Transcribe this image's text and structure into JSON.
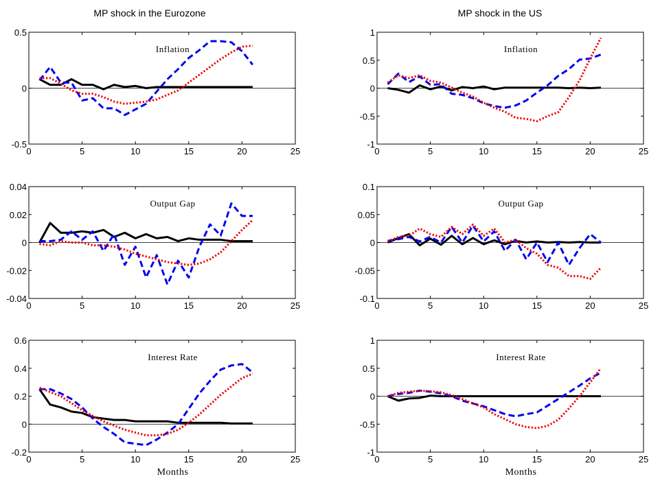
{
  "figure": {
    "col_titles": [
      "MP shock in the Eurozone",
      "MP shock in the US"
    ]
  },
  "chart_data": [
    {
      "type": "line",
      "title": "Inflation",
      "column_title": "MP shock in the Eurozone",
      "xlabel": "",
      "xlim": [
        0,
        25
      ],
      "ylim": [
        -0.5,
        0.5
      ],
      "xticks": [
        0,
        5,
        10,
        15,
        20,
        25
      ],
      "yticks": [
        -0.5,
        0,
        0.5
      ],
      "ytick_labels": [
        "-0.5",
        "0",
        "0.5"
      ],
      "x": [
        1,
        2,
        3,
        4,
        5,
        6,
        7,
        8,
        9,
        10,
        11,
        12,
        13,
        14,
        15,
        16,
        17,
        18,
        19,
        20,
        21
      ],
      "series": [
        {
          "color": "#000000",
          "style": "solid",
          "values": [
            0.08,
            0.03,
            0.03,
            0.08,
            0.03,
            0.03,
            -0.01,
            0.03,
            0.01,
            0.02,
            0.0,
            0.01,
            0.01,
            0.01,
            0.01,
            0.01,
            0.01,
            0.01,
            0.01,
            0.01,
            0.01
          ]
        },
        {
          "color": "#0000ee",
          "style": "dashed",
          "values": [
            0.07,
            0.19,
            0.05,
            0.05,
            -0.11,
            -0.09,
            -0.18,
            -0.18,
            -0.24,
            -0.19,
            -0.14,
            -0.03,
            0.08,
            0.17,
            0.27,
            0.34,
            0.42,
            0.42,
            0.41,
            0.33,
            0.21
          ]
        },
        {
          "color": "#ee0000",
          "style": "dotted",
          "values": [
            0.09,
            0.09,
            0.04,
            -0.02,
            -0.05,
            -0.05,
            -0.08,
            -0.12,
            -0.14,
            -0.13,
            -0.12,
            -0.1,
            -0.06,
            -0.02,
            0.05,
            0.12,
            0.19,
            0.26,
            0.32,
            0.37,
            0.38
          ]
        }
      ]
    },
    {
      "type": "line",
      "title": "Inflation",
      "column_title": "MP shock in the US",
      "xlabel": "",
      "xlim": [
        0,
        25
      ],
      "ylim": [
        -1,
        1
      ],
      "xticks": [
        0,
        5,
        10,
        15,
        20,
        25
      ],
      "yticks": [
        -1,
        -0.5,
        0,
        0.5,
        1
      ],
      "ytick_labels": [
        "-1",
        "-0.5",
        "0",
        "0.5",
        "1"
      ],
      "x": [
        1,
        2,
        3,
        4,
        5,
        6,
        7,
        8,
        9,
        10,
        11,
        12,
        13,
        14,
        15,
        16,
        17,
        18,
        19,
        20,
        21
      ],
      "series": [
        {
          "color": "#000000",
          "style": "solid",
          "values": [
            0.0,
            -0.03,
            -0.08,
            0.05,
            -0.02,
            0.03,
            -0.04,
            0.02,
            0.0,
            0.03,
            -0.02,
            0.01,
            0.01,
            0.01,
            0.01,
            0.01,
            0.01,
            0.0,
            0.01,
            0.0,
            0.01
          ]
        },
        {
          "color": "#0000ee",
          "style": "dashed",
          "values": [
            0.07,
            0.26,
            0.11,
            0.21,
            0.06,
            0.07,
            -0.1,
            -0.12,
            -0.18,
            -0.27,
            -0.32,
            -0.35,
            -0.31,
            -0.22,
            -0.08,
            0.05,
            0.22,
            0.34,
            0.51,
            0.53,
            0.6
          ]
        },
        {
          "color": "#ee0000",
          "style": "dotted",
          "values": [
            0.1,
            0.23,
            0.18,
            0.23,
            0.13,
            0.1,
            0.01,
            -0.08,
            -0.15,
            -0.26,
            -0.35,
            -0.42,
            -0.53,
            -0.55,
            -0.59,
            -0.5,
            -0.43,
            -0.16,
            0.14,
            0.53,
            0.9
          ]
        }
      ]
    },
    {
      "type": "line",
      "title": "Output Gap",
      "column_title": "MP shock in the Eurozone",
      "xlabel": "",
      "xlim": [
        0,
        25
      ],
      "ylim": [
        -0.04,
        0.04
      ],
      "xticks": [
        0,
        5,
        10,
        15,
        20,
        25
      ],
      "yticks": [
        -0.04,
        -0.02,
        0,
        0.02,
        0.04
      ],
      "ytick_labels": [
        "-0.04",
        "-0.02",
        "0",
        "0.02",
        "0.04"
      ],
      "x": [
        1,
        2,
        3,
        4,
        5,
        6,
        7,
        8,
        9,
        10,
        11,
        12,
        13,
        14,
        15,
        16,
        17,
        18,
        19,
        20,
        21
      ],
      "series": [
        {
          "color": "#000000",
          "style": "solid",
          "values": [
            0.0,
            0.014,
            0.007,
            0.007,
            0.008,
            0.007,
            0.009,
            0.004,
            0.007,
            0.003,
            0.006,
            0.003,
            0.004,
            0.001,
            0.003,
            0.002,
            0.002,
            0.002,
            0.001,
            0.001,
            0.001
          ]
        },
        {
          "color": "#0000ee",
          "style": "dashed",
          "values": [
            0.001,
            0.001,
            0.002,
            0.008,
            0.002,
            0.008,
            -0.006,
            0.006,
            -0.016,
            -0.003,
            -0.025,
            -0.009,
            -0.03,
            -0.013,
            -0.025,
            -0.003,
            0.013,
            0.005,
            0.028,
            0.019,
            0.019
          ]
        },
        {
          "color": "#ee0000",
          "style": "dotted",
          "values": [
            -0.001,
            -0.002,
            0.001,
            0.0,
            0.0,
            -0.002,
            -0.002,
            -0.003,
            -0.005,
            -0.008,
            -0.01,
            -0.012,
            -0.014,
            -0.015,
            -0.016,
            -0.015,
            -0.012,
            -0.007,
            0.001,
            0.009,
            0.016
          ]
        }
      ]
    },
    {
      "type": "line",
      "title": "Output Gap",
      "column_title": "MP shock in the US",
      "xlabel": "",
      "xlim": [
        0,
        25
      ],
      "ylim": [
        -0.1,
        0.1
      ],
      "xticks": [
        0,
        5,
        10,
        15,
        20,
        25
      ],
      "yticks": [
        -0.1,
        -0.05,
        0,
        0.05,
        0.1
      ],
      "ytick_labels": [
        "-0.1",
        "-0.05",
        "0",
        "0.05",
        "0.1"
      ],
      "x": [
        1,
        2,
        3,
        4,
        5,
        6,
        7,
        8,
        9,
        10,
        11,
        12,
        13,
        14,
        15,
        16,
        17,
        18,
        19,
        20,
        21
      ],
      "series": [
        {
          "color": "#000000",
          "style": "solid",
          "values": [
            0.0,
            0.008,
            0.015,
            -0.005,
            0.007,
            -0.004,
            0.012,
            -0.003,
            0.008,
            -0.003,
            0.004,
            -0.003,
            0.003,
            0.0,
            0.002,
            0.0,
            0.001,
            0.0,
            0.001,
            0.0,
            0.0
          ]
        },
        {
          "color": "#0000ee",
          "style": "dashed",
          "values": [
            0.003,
            0.006,
            0.01,
            0.002,
            0.01,
            0.0,
            0.028,
            0.0,
            0.03,
            0.002,
            0.02,
            -0.015,
            0.005,
            -0.03,
            0.0,
            -0.035,
            0.0,
            -0.04,
            -0.01,
            0.015,
            0.0
          ]
        },
        {
          "color": "#ee0000",
          "style": "dotted",
          "values": [
            0.002,
            0.01,
            0.012,
            0.025,
            0.015,
            0.01,
            0.028,
            0.015,
            0.032,
            0.012,
            0.025,
            0.0,
            0.005,
            -0.01,
            -0.02,
            -0.04,
            -0.045,
            -0.06,
            -0.06,
            -0.065,
            -0.045
          ]
        }
      ]
    },
    {
      "type": "line",
      "title": "Interest Rate",
      "column_title": "MP shock in the Eurozone",
      "xlabel": "Months",
      "xlim": [
        0,
        25
      ],
      "ylim": [
        -0.2,
        0.6
      ],
      "xticks": [
        0,
        5,
        10,
        15,
        20,
        25
      ],
      "yticks": [
        -0.2,
        0,
        0.2,
        0.4,
        0.6
      ],
      "ytick_labels": [
        "-0.2",
        "0",
        "0.2",
        "0.4",
        "0.6"
      ],
      "x": [
        1,
        2,
        3,
        4,
        5,
        6,
        7,
        8,
        9,
        10,
        11,
        12,
        13,
        14,
        15,
        16,
        17,
        18,
        19,
        20,
        21
      ],
      "series": [
        {
          "color": "#000000",
          "style": "solid",
          "values": [
            0.25,
            0.14,
            0.12,
            0.09,
            0.08,
            0.05,
            0.04,
            0.03,
            0.03,
            0.02,
            0.02,
            0.02,
            0.02,
            0.01,
            0.01,
            0.01,
            0.01,
            0.01,
            0.005,
            0.005,
            0.005
          ]
        },
        {
          "color": "#0000ee",
          "style": "dashed",
          "values": [
            0.25,
            0.25,
            0.22,
            0.18,
            0.12,
            0.04,
            -0.02,
            -0.07,
            -0.13,
            -0.14,
            -0.15,
            -0.11,
            -0.06,
            0.0,
            0.11,
            0.22,
            0.31,
            0.39,
            0.42,
            0.43,
            0.37
          ]
        },
        {
          "color": "#ee0000",
          "style": "dotted",
          "values": [
            0.26,
            0.23,
            0.2,
            0.15,
            0.1,
            0.06,
            0.02,
            -0.01,
            -0.04,
            -0.06,
            -0.08,
            -0.08,
            -0.07,
            -0.04,
            0.01,
            0.07,
            0.14,
            0.21,
            0.27,
            0.33,
            0.36
          ]
        }
      ]
    },
    {
      "type": "line",
      "title": "Interest Rate",
      "column_title": "MP shock in the US",
      "xlabel": "Months",
      "xlim": [
        0,
        25
      ],
      "ylim": [
        -1,
        1
      ],
      "xticks": [
        0,
        5,
        10,
        15,
        20,
        25
      ],
      "yticks": [
        -1,
        -0.5,
        0,
        0.5,
        1
      ],
      "ytick_labels": [
        "-1",
        "-0.5",
        "0",
        "0.5",
        "1"
      ],
      "x": [
        1,
        2,
        3,
        4,
        5,
        6,
        7,
        8,
        9,
        10,
        11,
        12,
        13,
        14,
        15,
        16,
        17,
        18,
        19,
        20,
        21
      ],
      "series": [
        {
          "color": "#000000",
          "style": "solid",
          "values": [
            0.0,
            -0.08,
            -0.04,
            -0.03,
            0.01,
            0.0,
            0.0,
            0.0,
            0.0,
            0.0,
            0.0,
            0.0,
            0.0,
            0.0,
            0.0,
            0.0,
            0.0,
            0.0,
            0.0,
            0.0,
            0.0
          ]
        },
        {
          "color": "#0000ee",
          "style": "dashed",
          "values": [
            0.0,
            0.04,
            0.06,
            0.1,
            0.08,
            0.05,
            0.0,
            -0.08,
            -0.13,
            -0.18,
            -0.25,
            -0.32,
            -0.36,
            -0.32,
            -0.29,
            -0.17,
            -0.05,
            0.07,
            0.19,
            0.32,
            0.42
          ]
        },
        {
          "color": "#ee0000",
          "style": "dotted",
          "values": [
            0.0,
            0.06,
            0.08,
            0.1,
            0.09,
            0.07,
            0.02,
            -0.05,
            -0.13,
            -0.2,
            -0.32,
            -0.41,
            -0.5,
            -0.55,
            -0.57,
            -0.53,
            -0.42,
            -0.22,
            0.0,
            0.25,
            0.5
          ]
        }
      ]
    }
  ]
}
